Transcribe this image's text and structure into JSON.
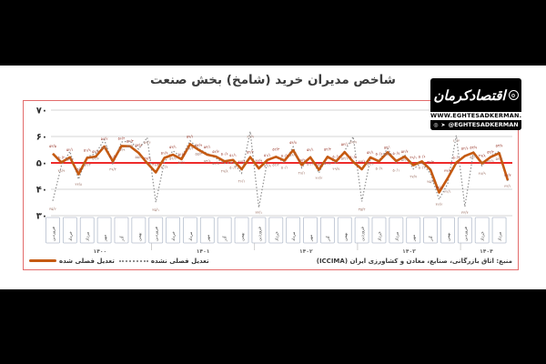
{
  "title": "شاخص مدیران خرید (شامخ) بخش صنعت",
  "logo": {
    "wordmark": "اقتصادکرمان",
    "website": "WWW.EGHTESADKERMAN.IR",
    "handle": "@EGHTESADKERMAN"
  },
  "source": "منبع: اتاق بازرگانی، صنایع، معادن و کشاورزی ایران (ICCIMA)",
  "legend": {
    "unadjusted": "تعدیل فصلی نشده",
    "adjusted": "تعدیل فصلی شده"
  },
  "colors": {
    "adjusted_line": "#C55A11",
    "unadjusted_line": "#8f8f8f",
    "baseline_50": "#ee2b2b",
    "frame_border": "#e36c6c",
    "grid": "#c9c9c9",
    "adjusted_label": "#9a3b2e",
    "unadjusted_label": "#a0766a",
    "box_border": "#b6bfce"
  },
  "chart_data": {
    "type": "line",
    "title": "شاخص مدیران خرید (شامخ) بخش صنعت",
    "ylim": [
      30,
      70
    ],
    "yticks": [
      70,
      60,
      50,
      40,
      30
    ],
    "ytick_labels": [
      "۷۰",
      "۶۰",
      "۵۰",
      "۴۰",
      "۳۰"
    ],
    "baseline": 50,
    "grid": true,
    "legend_position": "bottom-left",
    "years": [
      {
        "label": "۱۴۰۰",
        "months": 12,
        "tick_offsets": [
          0,
          2,
          4,
          6,
          8,
          10
        ],
        "tick_labels": [
          "فروردین",
          "خرداد",
          "مرداد",
          "مهر",
          "آذر",
          "بهمن"
        ]
      },
      {
        "label": "۱۴۰۱",
        "months": 12,
        "tick_offsets": [
          0,
          2,
          4,
          6,
          8,
          10
        ],
        "tick_labels": [
          "فروردین",
          "خرداد",
          "مرداد",
          "مهر",
          "آذر",
          "بهمن"
        ]
      },
      {
        "label": "۱۴۰۲",
        "months": 12,
        "tick_offsets": [
          0,
          2,
          4,
          6,
          8,
          10
        ],
        "tick_labels": [
          "فروردین",
          "خرداد",
          "مرداد",
          "مهر",
          "آذر",
          "بهمن"
        ]
      },
      {
        "label": "۱۴۰۳",
        "months": 12,
        "tick_offsets": [
          0,
          2,
          4,
          6,
          8,
          10
        ],
        "tick_labels": [
          "فروردین",
          "خرداد",
          "مرداد",
          "مهر",
          "آذر",
          "بهمن"
        ]
      },
      {
        "label": "۱۴۰۴",
        "months": 6,
        "tick_offsets": [
          0,
          2,
          4
        ],
        "tick_labels": [
          "فروردین",
          "خرداد",
          "مرداد"
        ]
      }
    ],
    "series": [
      {
        "name": "تعدیل فصلی شده",
        "style": "solid",
        "values": [
          53.5,
          50.2,
          52.1,
          45.7,
          51.9,
          52.4,
          56.2,
          50.6,
          56.4,
          56.3,
          53.8,
          49.9,
          46.4,
          51.9,
          53.1,
          51.4,
          57.1,
          54.9,
          53.1,
          52.4,
          50.6,
          51.1,
          47.6,
          52.2,
          47.9,
          51.1,
          52.3,
          50.9,
          54.8,
          49.2,
          52.1,
          47.4,
          52.3,
          50.6,
          54.1,
          50.4,
          47.6,
          52.1,
          50.6,
          54.0,
          50.7,
          52.4,
          49.1,
          50.6,
          47.4,
          38.8,
          44.2,
          50.1,
          52.6,
          53.9,
          49.8,
          52.2,
          53.7,
          43.4
        ]
      },
      {
        "name": "تعدیل فصلی نشده",
        "style": "dotted",
        "values": [
          35.6,
          48.9,
          54.3,
          43.8,
          52.3,
          53.6,
          58.8,
          49.4,
          57.9,
          58.3,
          55.2,
          59.6,
          35.1,
          50.4,
          54.6,
          52.1,
          58.4,
          55.3,
          53.6,
          51.8,
          49.8,
          50.2,
          46.1,
          61.9,
          33.1,
          50.8,
          52.2,
          50.1,
          56.1,
          48.1,
          52.6,
          46.2,
          52.7,
          49.7,
          54.6,
          59.9,
          35.4,
          51.6,
          50.9,
          55.4,
          50.1,
          53.1,
          47.7,
          50.1,
          45.9,
          36.2,
          42.1,
          60.4,
          33.4,
          54.1,
          48.9,
          52.6,
          54.4,
          43.1
        ]
      }
    ]
  }
}
